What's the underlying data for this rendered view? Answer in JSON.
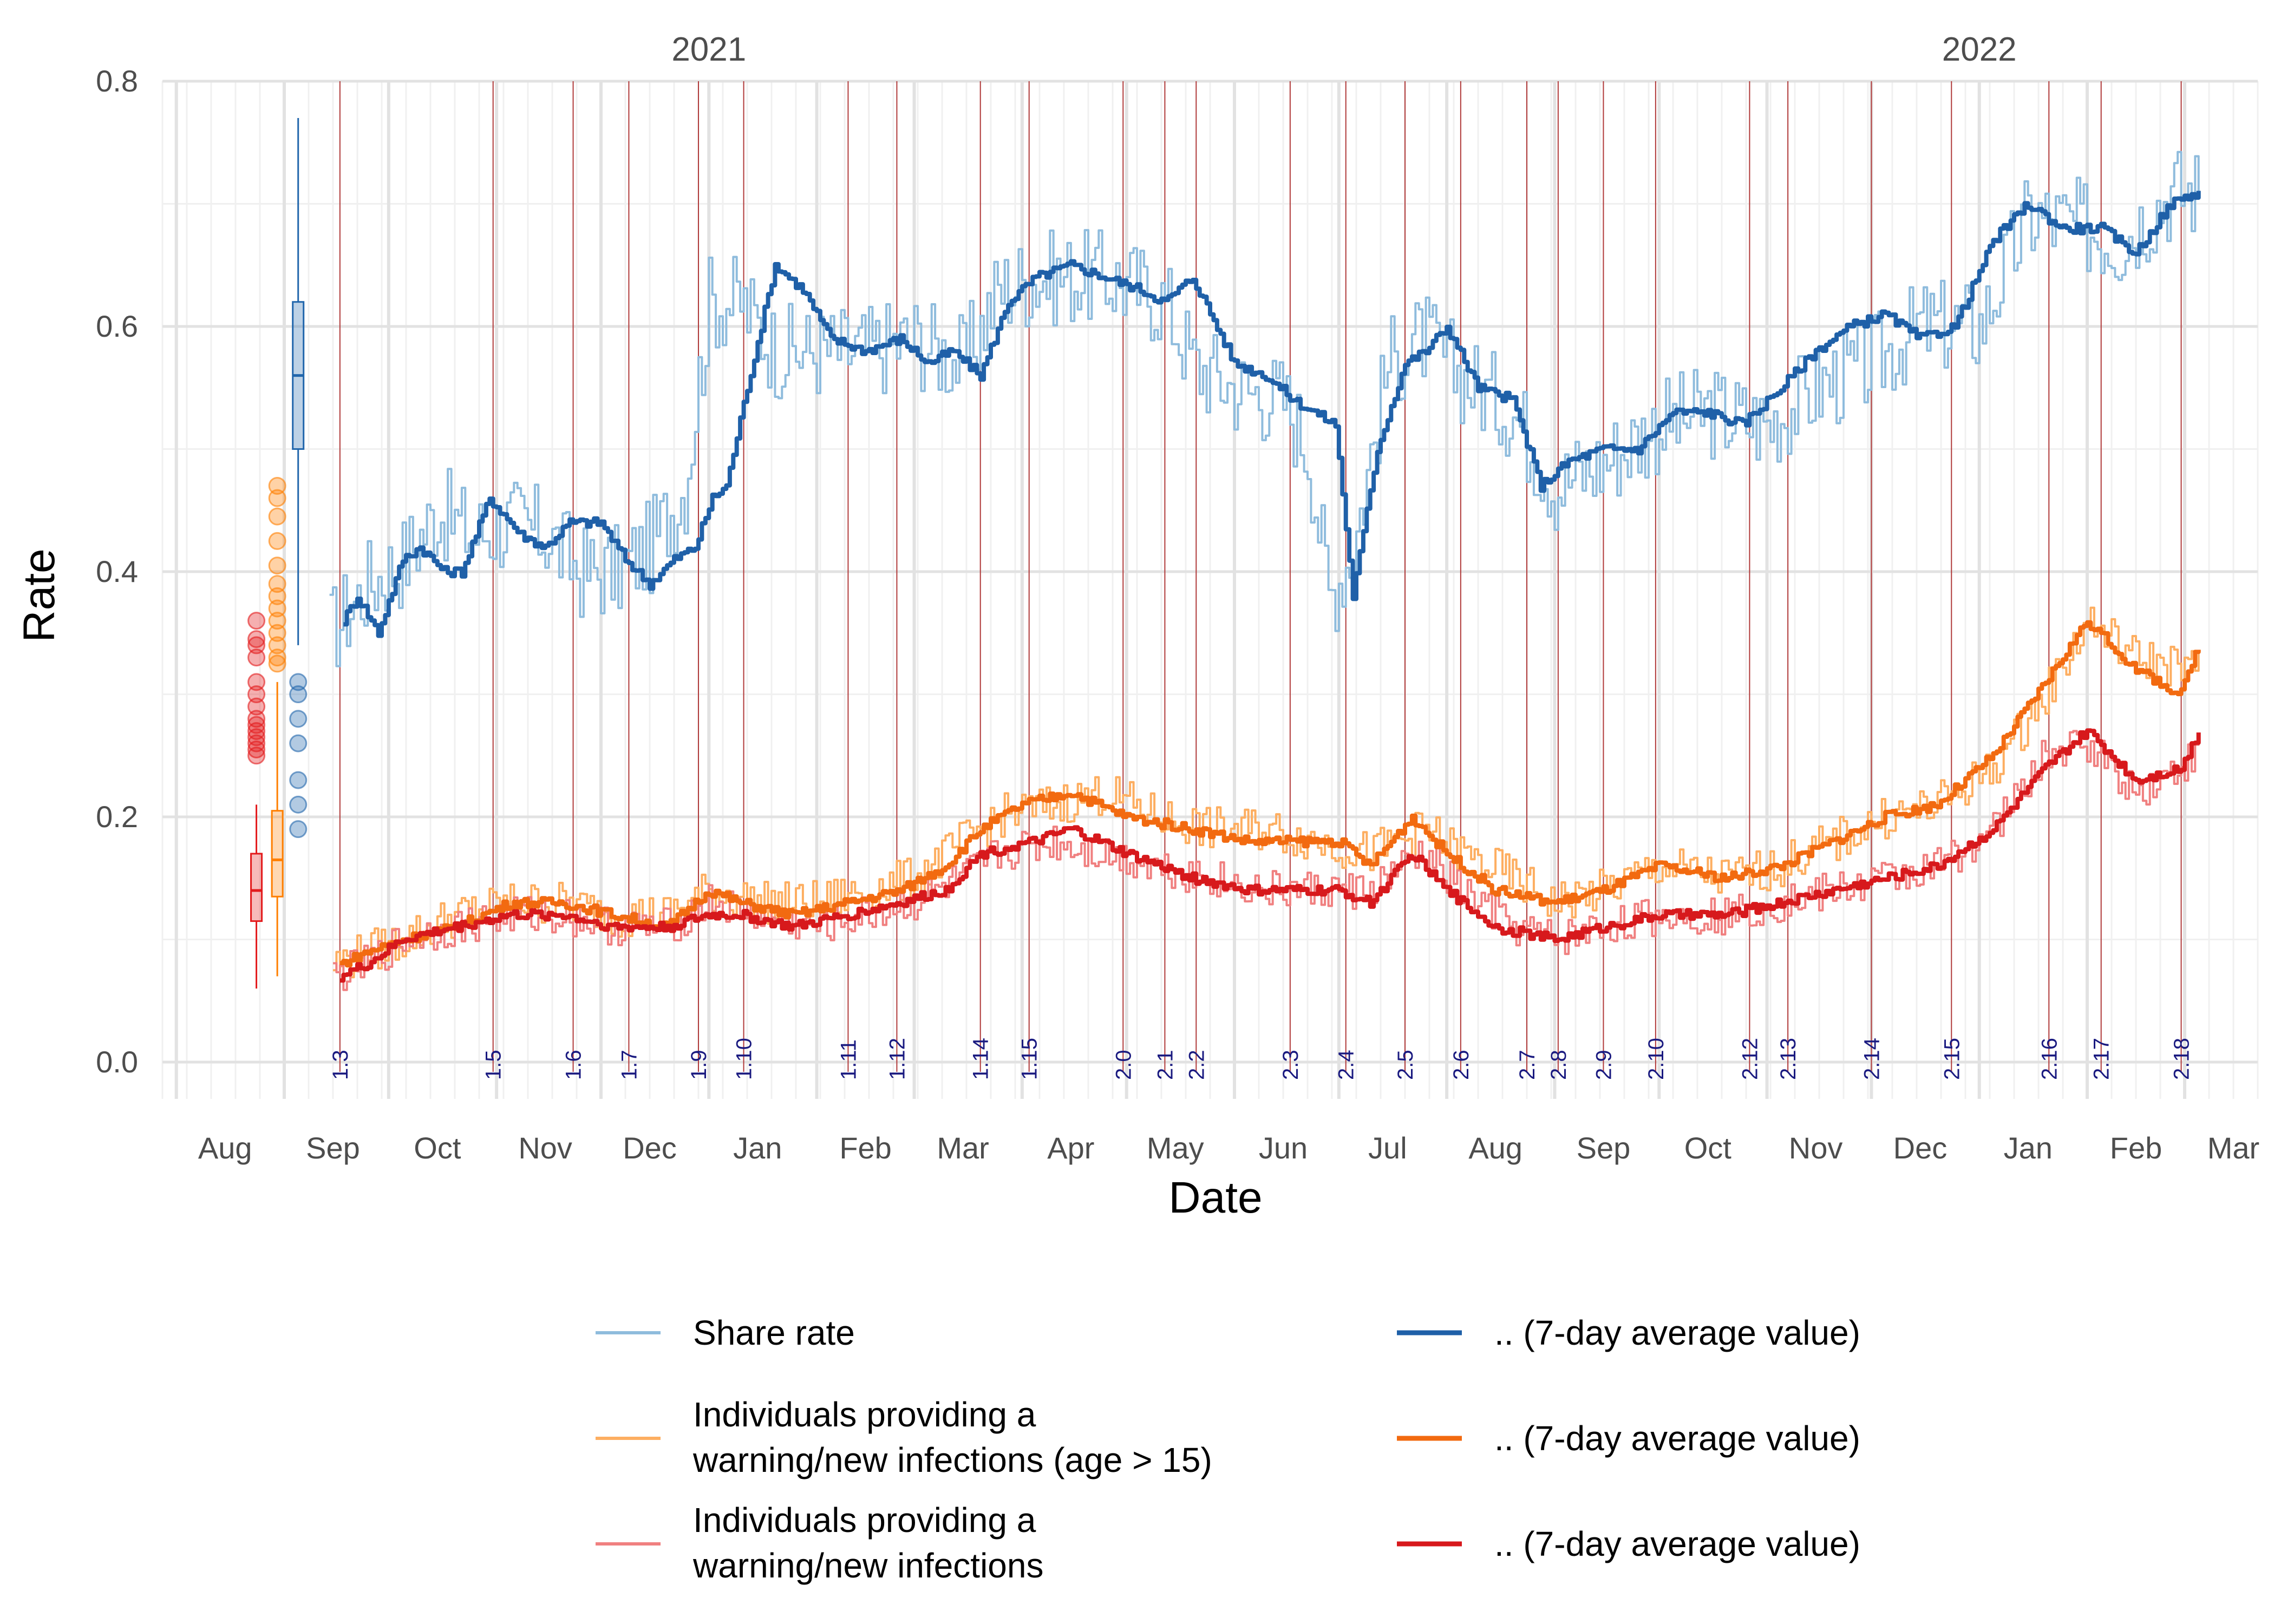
{
  "chart_data": {
    "type": "line",
    "xlabel": "Date",
    "ylabel": "Rate",
    "ylim": [
      -0.03,
      0.8
    ],
    "xlim": [
      "2020-07-28",
      "2022-03-22"
    ],
    "y_ticks": [
      "0.0",
      "0.2",
      "0.4",
      "0.6",
      "0.8"
    ],
    "x_ticks": [
      {
        "date": "2020-08-15",
        "label": "Aug"
      },
      {
        "date": "2020-09-15",
        "label": "Sep"
      },
      {
        "date": "2020-10-15",
        "label": "Oct"
      },
      {
        "date": "2020-11-15",
        "label": "Nov"
      },
      {
        "date": "2020-12-15",
        "label": "Dec"
      },
      {
        "date": "2021-01-15",
        "label": "Jan"
      },
      {
        "date": "2021-02-15",
        "label": "Feb"
      },
      {
        "date": "2021-03-15",
        "label": "Mar"
      },
      {
        "date": "2021-04-15",
        "label": "Apr"
      },
      {
        "date": "2021-05-15",
        "label": "May"
      },
      {
        "date": "2021-06-15",
        "label": "Jun"
      },
      {
        "date": "2021-07-15",
        "label": "Jul"
      },
      {
        "date": "2021-08-15",
        "label": "Aug"
      },
      {
        "date": "2021-09-15",
        "label": "Sep"
      },
      {
        "date": "2021-10-15",
        "label": "Oct"
      },
      {
        "date": "2021-11-15",
        "label": "Nov"
      },
      {
        "date": "2021-12-15",
        "label": "Dec"
      },
      {
        "date": "2022-01-15",
        "label": "Jan"
      },
      {
        "date": "2022-02-15",
        "label": "Feb"
      },
      {
        "date": "2022-03-15",
        "label": "Mar"
      }
    ],
    "year_labels": [
      {
        "date": "2021-01-01",
        "label": "2021"
      },
      {
        "date": "2022-01-01",
        "label": "2022"
      }
    ],
    "grid": true,
    "legend_position": "bottom",
    "versions": [
      {
        "label": "1.3",
        "date": "2020-09-17"
      },
      {
        "label": "1.5",
        "date": "2020-10-31"
      },
      {
        "label": "1.6",
        "date": "2020-11-23"
      },
      {
        "label": "1.7",
        "date": "2020-12-09"
      },
      {
        "label": "1.9",
        "date": "2020-12-29"
      },
      {
        "label": "1.10",
        "date": "2021-01-11"
      },
      {
        "label": "1.11",
        "date": "2021-02-10"
      },
      {
        "label": "1.12",
        "date": "2021-02-24"
      },
      {
        "label": "1.14",
        "date": "2021-03-20"
      },
      {
        "label": "1.15",
        "date": "2021-04-03"
      },
      {
        "label": "2.0",
        "date": "2021-04-30"
      },
      {
        "label": "2.1",
        "date": "2021-05-12"
      },
      {
        "label": "2.2",
        "date": "2021-05-21"
      },
      {
        "label": "2.3",
        "date": "2021-06-17"
      },
      {
        "label": "2.4",
        "date": "2021-07-03"
      },
      {
        "label": "2.5",
        "date": "2021-07-20"
      },
      {
        "label": "2.6",
        "date": "2021-08-05"
      },
      {
        "label": "2.7",
        "date": "2021-08-24"
      },
      {
        "label": "2.8",
        "date": "2021-09-02"
      },
      {
        "label": "2.9",
        "date": "2021-09-15"
      },
      {
        "label": "2.10",
        "date": "2021-09-30"
      },
      {
        "label": "2.12",
        "date": "2021-10-27"
      },
      {
        "label": "2.13",
        "date": "2021-11-07"
      },
      {
        "label": "2.14",
        "date": "2021-12-01"
      },
      {
        "label": "2.15",
        "date": "2021-12-24"
      },
      {
        "label": "2.16",
        "date": "2022-01-21"
      },
      {
        "label": "2.17",
        "date": "2022-02-05"
      },
      {
        "label": "2.18",
        "date": "2022-02-28"
      }
    ],
    "boxplots": [
      {
        "series": "Individuals providing a warning/new infections",
        "color": "#e31a1c",
        "date": "2020-08-24",
        "min": 0.06,
        "q1": 0.115,
        "median": 0.14,
        "q3": 0.17,
        "max": 0.21,
        "outliers": [
          0.25,
          0.255,
          0.26,
          0.265,
          0.27,
          0.275,
          0.28,
          0.29,
          0.3,
          0.31,
          0.33,
          0.34,
          0.345,
          0.36
        ]
      },
      {
        "series": "Individuals providing a warning/new infections (age > 15)",
        "color": "#ff7f00",
        "date": "2020-08-30",
        "min": 0.07,
        "q1": 0.135,
        "median": 0.165,
        "q3": 0.205,
        "max": 0.31,
        "outliers": [
          0.325,
          0.33,
          0.34,
          0.35,
          0.36,
          0.37,
          0.38,
          0.39,
          0.405,
          0.425,
          0.445,
          0.46,
          0.47
        ]
      },
      {
        "series": "Share rate",
        "color": "#2166ac",
        "date": "2020-09-05",
        "min": 0.34,
        "q1": 0.5,
        "median": 0.56,
        "q3": 0.62,
        "max": 0.77,
        "outliers": [
          0.19,
          0.21,
          0.23,
          0.26,
          0.28,
          0.3,
          0.31
        ]
      }
    ],
    "series": [
      {
        "name": "Share rate",
        "color": "#8fbcdd",
        "kind": "daily",
        "noise": 0.04,
        "x": [
          "2020-09-14",
          "2020-09-25",
          "2020-10-05",
          "2020-10-15",
          "2020-10-25",
          "2020-11-05",
          "2020-11-15",
          "2020-11-25",
          "2020-12-05",
          "2020-12-15",
          "2020-12-25",
          "2021-01-01",
          "2021-01-10",
          "2021-01-20",
          "2021-02-01",
          "2021-02-15",
          "2021-03-01",
          "2021-03-15",
          "2021-03-25",
          "2021-04-05",
          "2021-04-15",
          "2021-04-25",
          "2021-05-05",
          "2021-05-12",
          "2021-05-20",
          "2021-06-01",
          "2021-06-15",
          "2021-06-22",
          "2021-06-28",
          "2021-07-05",
          "2021-07-15",
          "2021-07-25",
          "2021-08-05",
          "2021-08-20",
          "2021-09-01",
          "2021-09-15",
          "2021-10-01",
          "2021-10-15",
          "2021-11-01",
          "2021-11-15",
          "2021-12-01",
          "2021-12-15",
          "2022-01-01",
          "2022-01-15",
          "2022-02-01",
          "2022-02-10",
          "2022-02-25",
          "2022-03-05"
        ],
        "y": [
          0.35,
          0.39,
          0.41,
          0.45,
          0.43,
          0.44,
          0.43,
          0.4,
          0.4,
          0.42,
          0.47,
          0.62,
          0.62,
          0.58,
          0.58,
          0.58,
          0.59,
          0.57,
          0.63,
          0.64,
          0.64,
          0.64,
          0.63,
          0.62,
          0.57,
          0.55,
          0.54,
          0.5,
          0.38,
          0.42,
          0.57,
          0.59,
          0.56,
          0.53,
          0.47,
          0.49,
          0.52,
          0.53,
          0.52,
          0.55,
          0.57,
          0.6,
          0.6,
          0.69,
          0.68,
          0.67,
          0.71,
          0.71
        ]
      },
      {
        "name": ".. (7-day average value)",
        "color": "#1f60a8",
        "kind": "average",
        "x": [
          "2020-09-18",
          "2020-09-22",
          "2020-09-28",
          "2020-10-05",
          "2020-10-10",
          "2020-10-17",
          "2020-10-22",
          "2020-10-30",
          "2020-11-08",
          "2020-11-15",
          "2020-11-22",
          "2020-12-01",
          "2020-12-08",
          "2020-12-15",
          "2020-12-22",
          "2020-12-28",
          "2021-01-02",
          "2021-01-06",
          "2021-01-12",
          "2021-01-20",
          "2021-01-28",
          "2021-02-05",
          "2021-02-15",
          "2021-02-25",
          "2021-03-05",
          "2021-03-12",
          "2021-03-20",
          "2021-03-28",
          "2021-04-05",
          "2021-04-15",
          "2021-04-25",
          "2021-05-05",
          "2021-05-12",
          "2021-05-20",
          "2021-06-01",
          "2021-06-10",
          "2021-06-18",
          "2021-06-24",
          "2021-06-30",
          "2021-07-05",
          "2021-07-12",
          "2021-07-20",
          "2021-07-26",
          "2021-08-01",
          "2021-08-10",
          "2021-08-20",
          "2021-08-28",
          "2021-09-05",
          "2021-09-15",
          "2021-09-25",
          "2021-10-05",
          "2021-10-15",
          "2021-10-25",
          "2021-11-05",
          "2021-11-15",
          "2021-11-25",
          "2021-12-05",
          "2021-12-15",
          "2021-12-25",
          "2022-01-05",
          "2022-01-15",
          "2022-01-25",
          "2022-02-05",
          "2022-02-15",
          "2022-02-25",
          "2022-03-05"
        ],
        "y": [
          0.36,
          0.38,
          0.35,
          0.41,
          0.42,
          0.4,
          0.4,
          0.46,
          0.43,
          0.42,
          0.44,
          0.44,
          0.41,
          0.39,
          0.41,
          0.42,
          0.46,
          0.47,
          0.55,
          0.65,
          0.63,
          0.59,
          0.58,
          0.59,
          0.57,
          0.58,
          0.56,
          0.62,
          0.64,
          0.65,
          0.64,
          0.63,
          0.62,
          0.64,
          0.57,
          0.56,
          0.54,
          0.53,
          0.52,
          0.38,
          0.5,
          0.57,
          0.58,
          0.6,
          0.55,
          0.54,
          0.47,
          0.49,
          0.5,
          0.5,
          0.53,
          0.53,
          0.52,
          0.55,
          0.58,
          0.6,
          0.61,
          0.59,
          0.6,
          0.67,
          0.7,
          0.68,
          0.68,
          0.66,
          0.7,
          0.71
        ]
      },
      {
        "name": "Individuals providing a warning/new infections (age > 15)",
        "color": "#fdae61",
        "kind": "daily",
        "noise": 0.018,
        "x": [
          "2020-09-15",
          "2020-09-25",
          "2020-10-05",
          "2020-10-20",
          "2020-11-05",
          "2020-11-20",
          "2020-12-05",
          "2020-12-20",
          "2021-01-01",
          "2021-01-15",
          "2021-02-01",
          "2021-02-15",
          "2021-03-01",
          "2021-03-15",
          "2021-03-25",
          "2021-04-10",
          "2021-04-25",
          "2021-05-10",
          "2021-05-25",
          "2021-06-10",
          "2021-06-25",
          "2021-07-10",
          "2021-07-25",
          "2021-08-05",
          "2021-08-20",
          "2021-09-01",
          "2021-09-15",
          "2021-10-01",
          "2021-10-20",
          "2021-11-05",
          "2021-11-20",
          "2021-12-05",
          "2021-12-20",
          "2022-01-05",
          "2022-01-20",
          "2022-02-01",
          "2022-02-15",
          "2022-03-05"
        ],
        "y": [
          0.08,
          0.09,
          0.1,
          0.12,
          0.13,
          0.13,
          0.12,
          0.12,
          0.14,
          0.13,
          0.13,
          0.14,
          0.15,
          0.18,
          0.2,
          0.21,
          0.22,
          0.2,
          0.19,
          0.19,
          0.18,
          0.17,
          0.19,
          0.17,
          0.15,
          0.13,
          0.14,
          0.16,
          0.15,
          0.16,
          0.18,
          0.2,
          0.21,
          0.24,
          0.3,
          0.36,
          0.33,
          0.32
        ]
      },
      {
        "name": ".. (7-day average value)",
        "color": "#f26a10",
        "kind": "average",
        "x": [
          "2020-09-17",
          "2020-09-25",
          "2020-10-05",
          "2020-10-20",
          "2020-11-05",
          "2020-11-20",
          "2020-12-05",
          "2020-12-20",
          "2021-01-01",
          "2021-01-10",
          "2021-01-25",
          "2021-02-10",
          "2021-02-25",
          "2021-03-10",
          "2021-03-20",
          "2021-04-01",
          "2021-04-15",
          "2021-05-01",
          "2021-05-20",
          "2021-06-05",
          "2021-06-20",
          "2021-07-01",
          "2021-07-10",
          "2021-07-22",
          "2021-08-01",
          "2021-08-15",
          "2021-09-01",
          "2021-09-15",
          "2021-10-01",
          "2021-10-20",
          "2021-11-05",
          "2021-11-20",
          "2021-12-05",
          "2021-12-20",
          "2022-01-05",
          "2022-01-20",
          "2022-02-01",
          "2022-02-15",
          "2022-02-28",
          "2022-03-05"
        ],
        "y": [
          0.08,
          0.09,
          0.1,
          0.11,
          0.13,
          0.13,
          0.12,
          0.11,
          0.14,
          0.13,
          0.12,
          0.13,
          0.14,
          0.16,
          0.19,
          0.21,
          0.22,
          0.2,
          0.19,
          0.18,
          0.18,
          0.18,
          0.16,
          0.2,
          0.17,
          0.14,
          0.13,
          0.14,
          0.16,
          0.15,
          0.16,
          0.18,
          0.2,
          0.21,
          0.25,
          0.31,
          0.36,
          0.32,
          0.3,
          0.34
        ]
      },
      {
        "name": "Individuals providing a warning/new infections",
        "color": "#f08080",
        "kind": "daily",
        "noise": 0.016,
        "x": [
          "2020-09-15",
          "2020-09-25",
          "2020-10-05",
          "2020-10-20",
          "2020-11-05",
          "2020-11-20",
          "2020-12-05",
          "2020-12-20",
          "2021-01-01",
          "2021-01-15",
          "2021-02-01",
          "2021-02-15",
          "2021-03-01",
          "2021-03-15",
          "2021-03-25",
          "2021-04-10",
          "2021-04-25",
          "2021-05-10",
          "2021-05-25",
          "2021-06-10",
          "2021-06-25",
          "2021-07-10",
          "2021-07-25",
          "2021-08-05",
          "2021-08-20",
          "2021-09-01",
          "2021-09-15",
          "2021-10-01",
          "2021-10-20",
          "2021-11-05",
          "2021-11-20",
          "2021-12-05",
          "2021-12-20",
          "2022-01-05",
          "2022-01-20",
          "2022-02-01",
          "2022-02-15",
          "2022-03-05"
        ],
        "y": [
          0.07,
          0.08,
          0.1,
          0.11,
          0.12,
          0.12,
          0.11,
          0.11,
          0.13,
          0.12,
          0.11,
          0.12,
          0.13,
          0.15,
          0.17,
          0.18,
          0.17,
          0.16,
          0.15,
          0.14,
          0.14,
          0.14,
          0.17,
          0.14,
          0.11,
          0.1,
          0.11,
          0.12,
          0.12,
          0.13,
          0.14,
          0.15,
          0.16,
          0.19,
          0.25,
          0.26,
          0.22,
          0.25
        ]
      },
      {
        "name": ".. (7-day average value)",
        "color": "#d7191c",
        "kind": "average",
        "x": [
          "2020-09-17",
          "2020-09-25",
          "2020-10-05",
          "2020-10-20",
          "2020-11-05",
          "2020-11-20",
          "2020-12-05",
          "2020-12-20",
          "2021-01-01",
          "2021-01-10",
          "2021-01-25",
          "2021-02-10",
          "2021-02-25",
          "2021-03-10",
          "2021-03-20",
          "2021-04-05",
          "2021-04-15",
          "2021-05-01",
          "2021-05-20",
          "2021-06-05",
          "2021-06-20",
          "2021-07-01",
          "2021-07-10",
          "2021-07-22",
          "2021-08-01",
          "2021-08-15",
          "2021-09-01",
          "2021-09-15",
          "2021-10-01",
          "2021-10-20",
          "2021-11-05",
          "2021-11-20",
          "2021-12-05",
          "2021-12-20",
          "2022-01-05",
          "2022-01-20",
          "2022-02-01",
          "2022-02-15",
          "2022-02-28",
          "2022-03-05"
        ],
        "y": [
          0.07,
          0.08,
          0.1,
          0.11,
          0.12,
          0.12,
          0.11,
          0.11,
          0.12,
          0.12,
          0.11,
          0.12,
          0.13,
          0.14,
          0.17,
          0.18,
          0.19,
          0.17,
          0.15,
          0.14,
          0.14,
          0.14,
          0.13,
          0.17,
          0.14,
          0.11,
          0.1,
          0.11,
          0.12,
          0.12,
          0.13,
          0.14,
          0.15,
          0.16,
          0.19,
          0.24,
          0.27,
          0.23,
          0.24,
          0.27
        ]
      }
    ],
    "legend": [
      {
        "label": "Share rate",
        "color": "#8fbcdd",
        "column": 0,
        "row": 0
      },
      {
        "label": "Individuals providing a warning/new infections (age > 15)",
        "line1": "Individuals providing a",
        "line2": "warning/new infections (age > 15)",
        "color": "#fdae61",
        "column": 0,
        "row": 1
      },
      {
        "label": "Individuals providing a warning/new infections",
        "line1": "Individuals providing a",
        "line2": "warning/new infections",
        "color": "#f08080",
        "column": 0,
        "row": 2
      },
      {
        "label": ".. (7-day average value)",
        "color": "#1f60a8",
        "column": 1,
        "row": 0
      },
      {
        "label": ".. (7-day average value)",
        "color": "#f26a10",
        "column": 1,
        "row": 1
      },
      {
        "label": ".. (7-day average value)",
        "color": "#d7191c",
        "column": 1,
        "row": 2
      }
    ]
  }
}
